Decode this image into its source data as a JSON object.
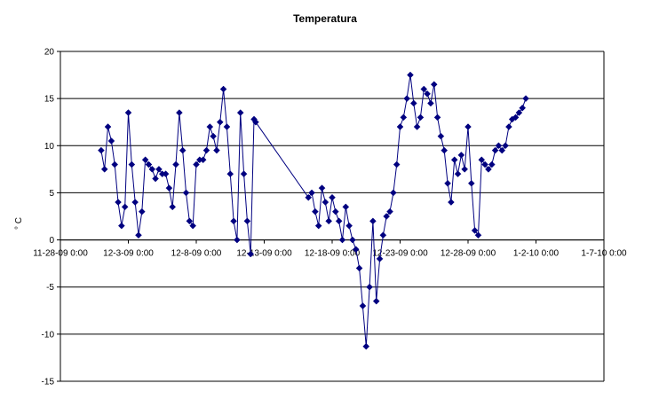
{
  "chart_data": {
    "type": "line",
    "title": "Temperatura",
    "xlabel": "",
    "ylabel": "° C",
    "x_axis_type": "date",
    "xlim": [
      "2009-11-28",
      "2010-01-07"
    ],
    "ylim": [
      -15,
      20
    ],
    "y_ticks": [
      -15,
      -10,
      -5,
      0,
      5,
      10,
      15,
      20
    ],
    "x_tick_labels": [
      "11-28-09 0:00",
      "12-3-09 0:00",
      "12-8-09 0:00",
      "12-13-09 0:00",
      "12-18-09 0:00",
      "12-23-09 0:00",
      "12-28-09 0:00",
      "1-2-10 0:00",
      "1-7-10 0:00"
    ],
    "grid": "horizontal",
    "legend": "none",
    "series": [
      {
        "color": "#000080",
        "marker": "diamond",
        "points": [
          [
            "2009-12-01T00:00",
            9.5
          ],
          [
            "2009-12-01T06:00",
            7.5
          ],
          [
            "2009-12-01T12:00",
            12.0
          ],
          [
            "2009-12-01T18:00",
            10.5
          ],
          [
            "2009-12-02T00:00",
            8.0
          ],
          [
            "2009-12-02T06:00",
            4.0
          ],
          [
            "2009-12-02T12:00",
            1.5
          ],
          [
            "2009-12-02T18:00",
            3.5
          ],
          [
            "2009-12-03T00:00",
            13.5
          ],
          [
            "2009-12-03T06:00",
            8.0
          ],
          [
            "2009-12-03T12:00",
            4.0
          ],
          [
            "2009-12-03T18:00",
            0.5
          ],
          [
            "2009-12-04T00:00",
            3.0
          ],
          [
            "2009-12-04T06:00",
            8.5
          ],
          [
            "2009-12-04T12:00",
            8.0
          ],
          [
            "2009-12-04T18:00",
            7.5
          ],
          [
            "2009-12-05T00:00",
            6.5
          ],
          [
            "2009-12-05T06:00",
            7.5
          ],
          [
            "2009-12-05T12:00",
            7.0
          ],
          [
            "2009-12-05T18:00",
            7.0
          ],
          [
            "2009-12-06T00:00",
            5.5
          ],
          [
            "2009-12-06T06:00",
            3.5
          ],
          [
            "2009-12-06T12:00",
            8.0
          ],
          [
            "2009-12-06T18:00",
            13.5
          ],
          [
            "2009-12-07T00:00",
            9.5
          ],
          [
            "2009-12-07T06:00",
            5.0
          ],
          [
            "2009-12-07T12:00",
            2.0
          ],
          [
            "2009-12-07T18:00",
            1.5
          ],
          [
            "2009-12-08T00:00",
            8.0
          ],
          [
            "2009-12-08T06:00",
            8.5
          ],
          [
            "2009-12-08T12:00",
            8.5
          ],
          [
            "2009-12-08T18:00",
            9.5
          ],
          [
            "2009-12-09T00:00",
            12.0
          ],
          [
            "2009-12-09T06:00",
            11.0
          ],
          [
            "2009-12-09T12:00",
            9.5
          ],
          [
            "2009-12-09T18:00",
            12.5
          ],
          [
            "2009-12-10T00:00",
            16.0
          ],
          [
            "2009-12-10T06:00",
            12.0
          ],
          [
            "2009-12-10T12:00",
            7.0
          ],
          [
            "2009-12-10T18:00",
            2.0
          ],
          [
            "2009-12-11T00:00",
            0.0
          ],
          [
            "2009-12-11T06:00",
            13.5
          ],
          [
            "2009-12-11T12:00",
            7.0
          ],
          [
            "2009-12-11T18:00",
            2.0
          ],
          [
            "2009-12-12T00:00",
            -1.5
          ],
          [
            "2009-12-12T06:00",
            12.8
          ],
          [
            "2009-12-12T09:00",
            12.5
          ],
          [
            "2009-12-16T06:00",
            4.5
          ],
          [
            "2009-12-16T12:00",
            5.0
          ],
          [
            "2009-12-16T18:00",
            3.0
          ],
          [
            "2009-12-17T00:00",
            1.5
          ],
          [
            "2009-12-17T06:00",
            5.5
          ],
          [
            "2009-12-17T12:00",
            4.0
          ],
          [
            "2009-12-17T18:00",
            2.0
          ],
          [
            "2009-12-18T00:00",
            4.5
          ],
          [
            "2009-12-18T06:00",
            3.0
          ],
          [
            "2009-12-18T12:00",
            2.0
          ],
          [
            "2009-12-18T18:00",
            0.0
          ],
          [
            "2009-12-19T00:00",
            3.5
          ],
          [
            "2009-12-19T06:00",
            1.5
          ],
          [
            "2009-12-19T12:00",
            0.0
          ],
          [
            "2009-12-19T18:00",
            -1.0
          ],
          [
            "2009-12-20T00:00",
            -3.0
          ],
          [
            "2009-12-20T06:00",
            -7.0
          ],
          [
            "2009-12-20T12:00",
            -11.3
          ],
          [
            "2009-12-20T18:00",
            -5.0
          ],
          [
            "2009-12-21T00:00",
            2.0
          ],
          [
            "2009-12-21T06:00",
            -6.5
          ],
          [
            "2009-12-21T12:00",
            -2.0
          ],
          [
            "2009-12-21T18:00",
            0.5
          ],
          [
            "2009-12-22T00:00",
            2.5
          ],
          [
            "2009-12-22T06:00",
            3.0
          ],
          [
            "2009-12-22T12:00",
            5.0
          ],
          [
            "2009-12-22T18:00",
            8.0
          ],
          [
            "2009-12-23T00:00",
            12.0
          ],
          [
            "2009-12-23T06:00",
            13.0
          ],
          [
            "2009-12-23T12:00",
            15.0
          ],
          [
            "2009-12-23T18:00",
            17.5
          ],
          [
            "2009-12-24T00:00",
            14.5
          ],
          [
            "2009-12-24T06:00",
            12.0
          ],
          [
            "2009-12-24T12:00",
            13.0
          ],
          [
            "2009-12-24T18:00",
            16.0
          ],
          [
            "2009-12-25T00:00",
            15.5
          ],
          [
            "2009-12-25T06:00",
            14.5
          ],
          [
            "2009-12-25T12:00",
            16.5
          ],
          [
            "2009-12-25T18:00",
            13.0
          ],
          [
            "2009-12-26T00:00",
            11.0
          ],
          [
            "2009-12-26T06:00",
            9.5
          ],
          [
            "2009-12-26T12:00",
            6.0
          ],
          [
            "2009-12-26T18:00",
            4.0
          ],
          [
            "2009-12-27T00:00",
            8.5
          ],
          [
            "2009-12-27T06:00",
            7.0
          ],
          [
            "2009-12-27T12:00",
            9.0
          ],
          [
            "2009-12-27T18:00",
            7.5
          ],
          [
            "2009-12-28T00:00",
            12.0
          ],
          [
            "2009-12-28T06:00",
            6.0
          ],
          [
            "2009-12-28T12:00",
            1.0
          ],
          [
            "2009-12-28T18:00",
            0.5
          ],
          [
            "2009-12-29T00:00",
            8.5
          ],
          [
            "2009-12-29T06:00",
            8.0
          ],
          [
            "2009-12-29T12:00",
            7.5
          ],
          [
            "2009-12-29T18:00",
            8.0
          ],
          [
            "2009-12-30T00:00",
            9.5
          ],
          [
            "2009-12-30T06:00",
            10.0
          ],
          [
            "2009-12-30T12:00",
            9.5
          ],
          [
            "2009-12-30T18:00",
            10.0
          ],
          [
            "2009-12-31T00:00",
            12.0
          ],
          [
            "2009-12-31T06:00",
            12.8
          ],
          [
            "2009-12-31T12:00",
            13.0
          ],
          [
            "2009-12-31T18:00",
            13.5
          ],
          [
            "2010-01-01T00:00",
            14.0
          ],
          [
            "2010-01-01T06:00",
            15.0
          ]
        ]
      }
    ]
  }
}
